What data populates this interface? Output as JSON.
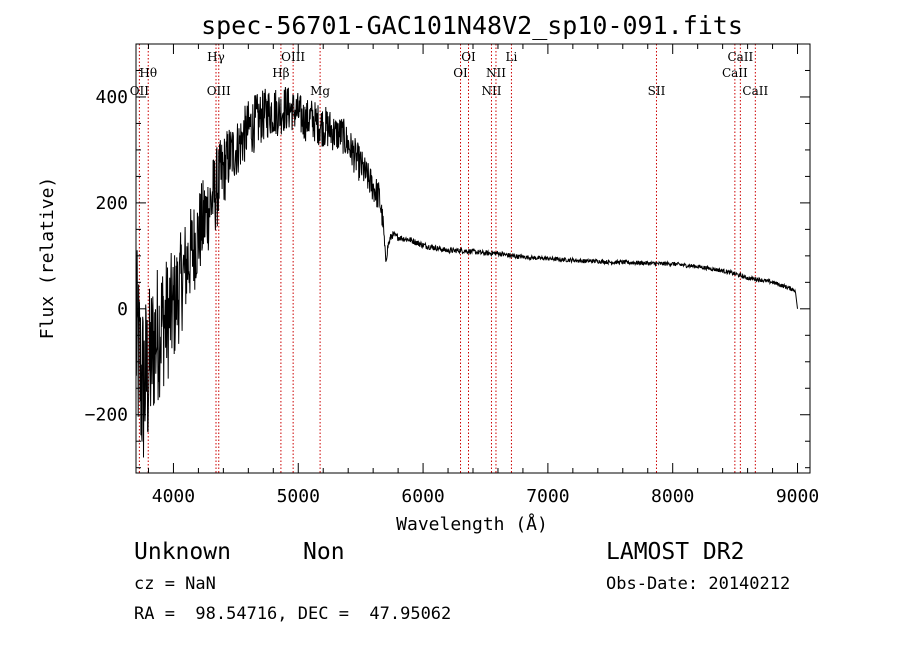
{
  "chart_data": {
    "type": "line",
    "title": "spec-56701-GAC101N48V2_sp10-091.fits",
    "xlabel": "Wavelength (Å)",
    "ylabel": "Flux (relative)",
    "xlim": [
      3700,
      9100
    ],
    "ylim": [
      -310,
      500
    ],
    "xticks": [
      4000,
      5000,
      6000,
      7000,
      8000,
      9000
    ],
    "yticks": [
      -200,
      0,
      200,
      400
    ],
    "grid": false,
    "legend": "none",
    "series": [
      {
        "x": [
          3700,
          3750,
          3800,
          3850,
          3900,
          3950,
          4000,
          4050,
          4100,
          4150,
          4200,
          4250,
          4300,
          4350,
          4400,
          4450,
          4500,
          4550,
          4600,
          4650,
          4700,
          4750,
          4800,
          4850,
          4900,
          4950,
          5000,
          5050,
          5100,
          5150,
          5200,
          5250,
          5300,
          5350,
          5400,
          5450,
          5500,
          5550,
          5600,
          5650,
          5680,
          5700,
          5720,
          5750,
          5800,
          5900,
          6000,
          6100,
          6200,
          6300,
          6400,
          6500,
          6600,
          6700,
          6800,
          6900,
          7000,
          7100,
          7200,
          7300,
          7400,
          7500,
          7600,
          7700,
          7800,
          7900,
          8000,
          8100,
          8200,
          8300,
          8400,
          8500,
          8600,
          8700,
          8800,
          8900,
          8980,
          9000
        ],
        "y": [
          -50,
          -150,
          -120,
          -60,
          -30,
          -20,
          0,
          40,
          80,
          110,
          140,
          170,
          200,
          230,
          260,
          290,
          300,
          320,
          340,
          350,
          360,
          370,
          375,
          370,
          380,
          375,
          370,
          355,
          360,
          350,
          345,
          340,
          330,
          330,
          310,
          290,
          270,
          250,
          230,
          210,
          160,
          90,
          120,
          140,
          135,
          130,
          120,
          115,
          110,
          110,
          108,
          105,
          105,
          100,
          98,
          96,
          95,
          93,
          92,
          90,
          90,
          88,
          88,
          87,
          86,
          85,
          85,
          82,
          80,
          76,
          72,
          66,
          58,
          55,
          50,
          42,
          35,
          0
        ],
        "noise": [
          180,
          180,
          160,
          140,
          130,
          120,
          110,
          100,
          95,
          90,
          85,
          85,
          80,
          80,
          70,
          60,
          55,
          55,
          55,
          55,
          50,
          50,
          50,
          45,
          45,
          40,
          40,
          40,
          40,
          40,
          40,
          40,
          35,
          35,
          35,
          35,
          35,
          30,
          30,
          30,
          20,
          10,
          10,
          8,
          6,
          6,
          6,
          5,
          5,
          5,
          5,
          5,
          5,
          5,
          4,
          4,
          4,
          4,
          4,
          4,
          4,
          4,
          4,
          4,
          4,
          4,
          4,
          4,
          4,
          4,
          4,
          4,
          4,
          4,
          4,
          4,
          4,
          4
        ]
      }
    ],
    "spectral_lines": [
      {
        "label": "Hθ",
        "wavelength": 3798,
        "row": 2
      },
      {
        "label": "OII",
        "wavelength": 3727,
        "row": 3
      },
      {
        "label": "Hγ",
        "wavelength": 4341,
        "row": 1
      },
      {
        "label": "OIII",
        "wavelength": 4363,
        "row": 3
      },
      {
        "label": "OIII",
        "wavelength": 4959,
        "row": 1
      },
      {
        "label": "Hβ",
        "wavelength": 4861,
        "row": 2
      },
      {
        "label": "Mg",
        "wavelength": 5175,
        "row": 3
      },
      {
        "label": "OI",
        "wavelength": 6364,
        "row": 1
      },
      {
        "label": "OI",
        "wavelength": 6300,
        "row": 2
      },
      {
        "label": "NII",
        "wavelength": 6584,
        "row": 2
      },
      {
        "label": "NII",
        "wavelength": 6548,
        "row": 3
      },
      {
        "label": "Li",
        "wavelength": 6708,
        "row": 1
      },
      {
        "label": "SII",
        "wavelength": 7870,
        "row": 3
      },
      {
        "label": "CaII",
        "wavelength": 8542,
        "row": 1
      },
      {
        "label": "CaII",
        "wavelength": 8498,
        "row": 2
      },
      {
        "label": "CaII",
        "wavelength": 8662,
        "row": 3
      }
    ]
  },
  "info": {
    "class_label": "Unknown",
    "subclass_label": "Non",
    "survey_label": "LAMOST DR2",
    "cz_text": "cz = NaN",
    "obs_date_text": "Obs-Date: 20140212",
    "coords_text": "RA =  98.54716, DEC =  47.95062"
  },
  "colors": {
    "spectrum": "#000000",
    "line_markers": "#cc0000",
    "text": "#000000"
  }
}
